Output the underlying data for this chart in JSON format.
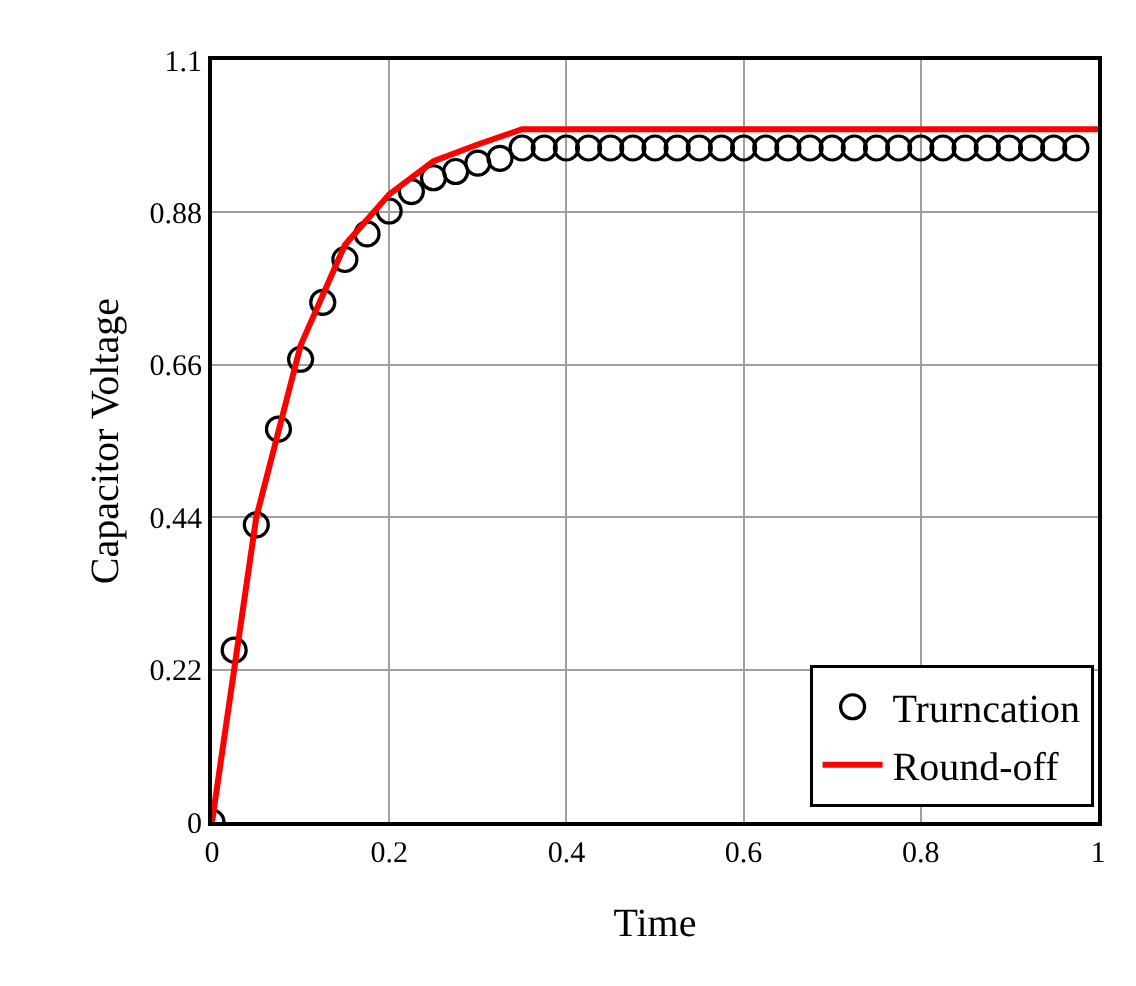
{
  "chart_data": {
    "type": "line",
    "xlabel": "Time",
    "ylabel": "Capacitor Voltage",
    "xlim": [
      0,
      1
    ],
    "xticks": [
      0,
      0.2,
      0.4,
      0.6,
      0.8,
      1
    ],
    "ylim": [
      0,
      1.1
    ],
    "yticks": [
      0,
      0.22,
      0.44,
      0.66,
      0.88,
      1.1
    ],
    "grid": true,
    "legend": "bottom right",
    "series": [
      {
        "name": "Trurncation",
        "type": "scatter",
        "marker": "circle",
        "color": "#000000",
        "x": [
          0,
          0.025,
          0.05,
          0.075,
          0.1,
          0.125,
          0.15,
          0.175,
          0.2,
          0.225,
          0.25,
          0.275,
          0.3,
          0.325,
          0.35,
          0.375,
          0.4,
          0.425,
          0.45,
          0.475,
          0.5,
          0.525,
          0.55,
          0.575,
          0.6,
          0.625,
          0.65,
          0.675,
          0.7,
          0.725,
          0.75,
          0.775,
          0.8,
          0.825,
          0.85,
          0.875,
          0.9,
          0.925,
          0.95,
          0.975
        ],
        "values": [
          0,
          0.248,
          0.429,
          0.567,
          0.668,
          0.75,
          0.812,
          0.849,
          0.882,
          0.91,
          0.93,
          0.939,
          0.951,
          0.958,
          0.973,
          0.973,
          0.973,
          0.973,
          0.973,
          0.973,
          0.973,
          0.973,
          0.973,
          0.973,
          0.973,
          0.973,
          0.973,
          0.973,
          0.973,
          0.973,
          0.973,
          0.973,
          0.973,
          0.973,
          0.973,
          0.973,
          0.973,
          0.973,
          0.973,
          0.973
        ]
      },
      {
        "name": "Round-off",
        "color": "#ff0000",
        "line_style": "solid",
        "x": [
          0,
          0.05,
          0.1,
          0.15,
          0.2,
          0.25,
          0.3,
          0.35,
          1
        ],
        "values": [
          0,
          0.44,
          0.688,
          0.833,
          0.906,
          0.954,
          0.978,
          1.0,
          1.0
        ]
      }
    ]
  }
}
